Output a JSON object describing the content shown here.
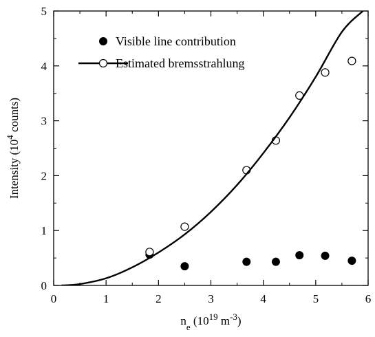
{
  "chart_data": {
    "type": "scatter",
    "title": "",
    "xlabel": {
      "base": "n",
      "base_sub": "e",
      "prefix": " (10",
      "exp": "19",
      "unit": " m",
      "unit_exp": "-3",
      "suffix": ")"
    },
    "ylabel": {
      "prefix": "Intensity (10",
      "exp": "4",
      "suffix": " counts)"
    },
    "xlim": [
      0,
      6
    ],
    "ylim": [
      0,
      5
    ],
    "x_ticks": [
      "0",
      "1",
      "2",
      "3",
      "4",
      "5",
      "6"
    ],
    "y_ticks": [
      "0",
      "1",
      "2",
      "3",
      "4",
      "5"
    ],
    "grid": false,
    "legend_position": "top-left",
    "series": [
      {
        "name": "Visible line contribution",
        "marker": "filled-circle",
        "color": "#000000",
        "x": [
          1.83,
          2.5,
          3.68,
          4.24,
          4.69,
          5.18,
          5.69
        ],
        "y": [
          0.56,
          0.35,
          0.43,
          0.43,
          0.55,
          0.54,
          0.45
        ]
      },
      {
        "name": "Estimated bremsstrahlung",
        "marker": "open-circle",
        "color": "#000000",
        "x": [
          1.83,
          2.5,
          3.68,
          4.24,
          4.69,
          5.18,
          5.69
        ],
        "y": [
          0.61,
          1.07,
          2.1,
          2.64,
          3.46,
          3.88,
          4.09
        ]
      },
      {
        "name": "fit",
        "type": "line",
        "color": "#000000",
        "x": [
          0.15,
          0.5,
          1.0,
          1.5,
          2.0,
          2.5,
          3.0,
          3.5,
          4.0,
          4.5,
          5.0,
          5.5,
          5.9
        ],
        "y": [
          0.0,
          0.025,
          0.13,
          0.33,
          0.6,
          0.93,
          1.34,
          1.83,
          2.41,
          3.06,
          3.8,
          4.62,
          5.0
        ]
      }
    ]
  }
}
